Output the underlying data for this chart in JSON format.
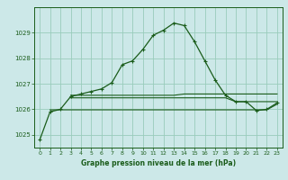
{
  "background_color": "#cce8e8",
  "grid_color": "#99ccbb",
  "line_color": "#1a5c1a",
  "marker_color": "#1a5c1a",
  "xlabel": "Graphe pression niveau de la mer (hPa)",
  "xlim": [
    -0.5,
    23.5
  ],
  "ylim": [
    1024.5,
    1030.0
  ],
  "yticks": [
    1025,
    1026,
    1027,
    1028,
    1029
  ],
  "xticks": [
    0,
    1,
    2,
    3,
    4,
    5,
    6,
    7,
    8,
    9,
    10,
    11,
    12,
    13,
    14,
    15,
    16,
    17,
    18,
    19,
    20,
    21,
    22,
    23
  ],
  "main_series": [
    [
      0,
      1024.8
    ],
    [
      1,
      1025.9
    ],
    [
      2,
      1026.0
    ],
    [
      3,
      1026.5
    ],
    [
      4,
      1026.6
    ],
    [
      5,
      1026.7
    ],
    [
      6,
      1026.8
    ],
    [
      7,
      1027.05
    ],
    [
      8,
      1027.75
    ],
    [
      9,
      1027.9
    ],
    [
      10,
      1028.35
    ],
    [
      11,
      1028.9
    ],
    [
      12,
      1029.1
    ],
    [
      13,
      1029.38
    ],
    [
      14,
      1029.28
    ],
    [
      15,
      1028.65
    ],
    [
      16,
      1027.9
    ],
    [
      17,
      1027.15
    ],
    [
      18,
      1026.55
    ],
    [
      19,
      1026.3
    ],
    [
      20,
      1026.3
    ],
    [
      21,
      1025.95
    ],
    [
      22,
      1026.0
    ],
    [
      23,
      1026.25
    ]
  ],
  "flat_series1": [
    [
      1,
      1025.98
    ],
    [
      2,
      1025.98
    ],
    [
      3,
      1025.98
    ],
    [
      4,
      1025.98
    ],
    [
      5,
      1025.98
    ],
    [
      6,
      1025.98
    ],
    [
      7,
      1025.98
    ],
    [
      8,
      1025.98
    ],
    [
      9,
      1025.98
    ],
    [
      10,
      1025.98
    ],
    [
      11,
      1025.98
    ],
    [
      12,
      1025.98
    ],
    [
      13,
      1025.98
    ],
    [
      14,
      1025.98
    ],
    [
      15,
      1025.98
    ],
    [
      16,
      1025.98
    ],
    [
      17,
      1025.98
    ],
    [
      18,
      1025.98
    ],
    [
      19,
      1025.98
    ],
    [
      20,
      1025.98
    ],
    [
      21,
      1025.98
    ],
    [
      22,
      1025.98
    ],
    [
      23,
      1026.2
    ]
  ],
  "flat_series2": [
    [
      3,
      1026.45
    ],
    [
      4,
      1026.45
    ],
    [
      5,
      1026.45
    ],
    [
      6,
      1026.45
    ],
    [
      7,
      1026.45
    ],
    [
      8,
      1026.45
    ],
    [
      9,
      1026.45
    ],
    [
      10,
      1026.45
    ],
    [
      11,
      1026.45
    ],
    [
      12,
      1026.45
    ],
    [
      13,
      1026.45
    ],
    [
      14,
      1026.45
    ],
    [
      15,
      1026.45
    ],
    [
      16,
      1026.45
    ],
    [
      17,
      1026.45
    ],
    [
      18,
      1026.45
    ],
    [
      19,
      1026.3
    ],
    [
      20,
      1026.3
    ],
    [
      21,
      1026.3
    ],
    [
      22,
      1026.3
    ],
    [
      23,
      1026.3
    ]
  ],
  "flat_series3": [
    [
      3,
      1026.55
    ],
    [
      4,
      1026.55
    ],
    [
      5,
      1026.55
    ],
    [
      6,
      1026.55
    ],
    [
      7,
      1026.55
    ],
    [
      8,
      1026.55
    ],
    [
      9,
      1026.55
    ],
    [
      10,
      1026.55
    ],
    [
      11,
      1026.55
    ],
    [
      12,
      1026.55
    ],
    [
      13,
      1026.55
    ],
    [
      14,
      1026.6
    ],
    [
      15,
      1026.6
    ],
    [
      16,
      1026.6
    ],
    [
      17,
      1026.6
    ],
    [
      18,
      1026.6
    ],
    [
      19,
      1026.6
    ],
    [
      20,
      1026.6
    ],
    [
      21,
      1026.6
    ],
    [
      22,
      1026.6
    ],
    [
      23,
      1026.6
    ]
  ]
}
